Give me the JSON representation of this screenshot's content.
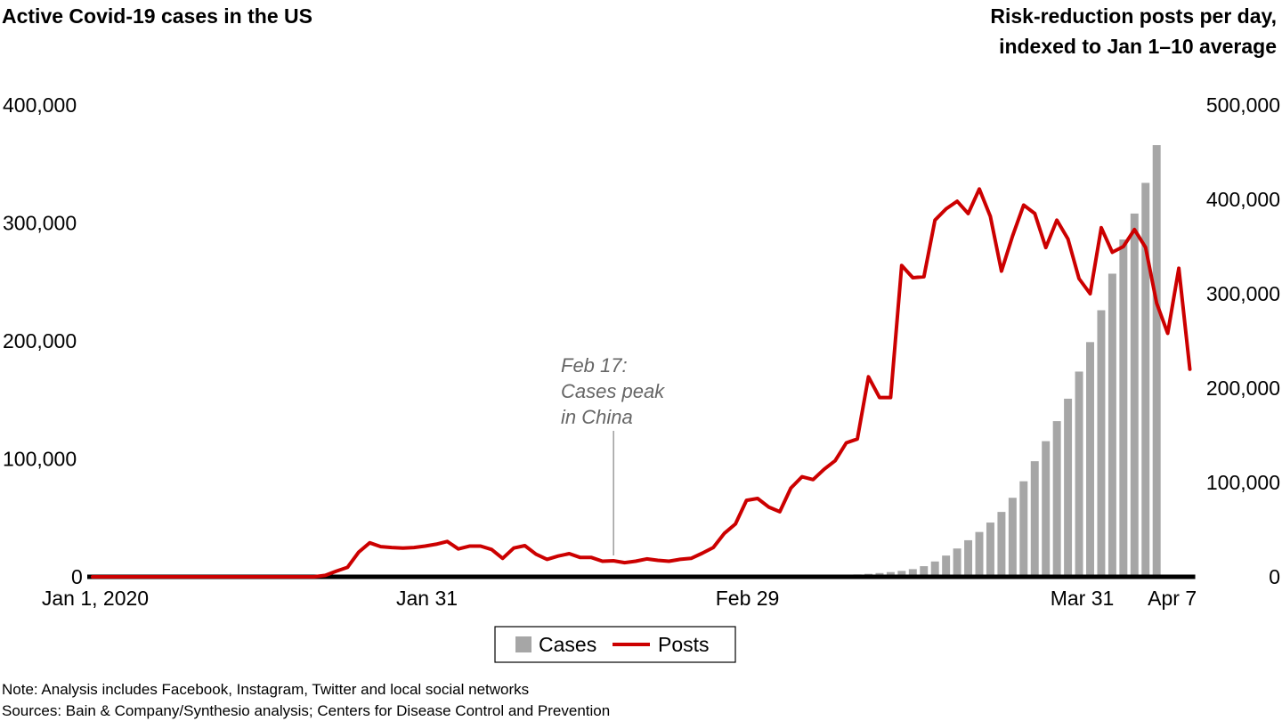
{
  "chart_data": {
    "type": "bar+line",
    "title_left": "Active Covid-19 cases in the US",
    "title_right_line1": "Risk-reduction posts per day,",
    "title_right_line2": "indexed to Jan 1–10 average",
    "x_tick_labels": [
      "Jan 1, 2020",
      "Jan 31",
      "Feb 29",
      "Mar 31",
      "Apr 7"
    ],
    "left_axis": {
      "ticks": [
        "400,000",
        "300,000",
        "200,000",
        "100,000",
        "0"
      ],
      "ylim": [
        0,
        400000
      ]
    },
    "right_axis": {
      "ticks": [
        "500,000",
        "400,000",
        "300,000",
        "200,000",
        "100,000",
        "0"
      ],
      "ylim": [
        0,
        500000
      ]
    },
    "annotation": {
      "lines": [
        "Feb 17:",
        "Cases peak",
        "in China"
      ],
      "date_index": 47
    },
    "legend": {
      "cases_label": "Cases",
      "posts_label": "Posts"
    },
    "series": [
      {
        "name": "Cases",
        "kind": "bar",
        "axis": "left",
        "color": "#a6a6a6",
        "start_index": 64,
        "values": [
          300,
          600,
          900,
          1200,
          1600,
          2000,
          2500,
          3200,
          4000,
          5000,
          6500,
          9000,
          13000,
          18000,
          24000,
          31000,
          38000,
          46000,
          55000,
          67000,
          81000,
          98000,
          115000,
          132000,
          151000,
          174000,
          199000,
          226000,
          257000,
          286000,
          308000,
          334000,
          366000
        ]
      },
      {
        "name": "Posts",
        "kind": "line",
        "axis": "right",
        "color": "#cc0000",
        "values": [
          0,
          0,
          0,
          0,
          0,
          0,
          0,
          0,
          0,
          0,
          0,
          0,
          0,
          0,
          0,
          0,
          0,
          0,
          0,
          0,
          0,
          1500,
          6000,
          10000,
          26000,
          36000,
          32000,
          31000,
          30500,
          31000,
          32500,
          34500,
          37500,
          29500,
          32500,
          32500,
          29000,
          19500,
          30500,
          33000,
          24000,
          18500,
          22000,
          24500,
          20500,
          20500,
          16500,
          17000,
          15000,
          16500,
          19000,
          17500,
          16500,
          18500,
          19500,
          25000,
          31000,
          46000,
          56000,
          81000,
          83000,
          74000,
          69000,
          94000,
          106000,
          103000,
          114000,
          123000,
          142000,
          146000,
          212000,
          190000,
          190000,
          330000,
          317000,
          318000,
          378000,
          390000,
          398000,
          385000,
          411000,
          382000,
          324000,
          361000,
          394000,
          385000,
          349000,
          378000,
          358000,
          316000,
          300000,
          370000,
          344000,
          350000,
          368000,
          349000,
          290000,
          258000,
          327000,
          220000
        ]
      }
    ],
    "notes": [
      "Note: Analysis includes Facebook, Instagram, Twitter and local social networks",
      "Sources: Bain & Company/Synthesio analysis; Centers for Disease Control and Prevention"
    ]
  }
}
